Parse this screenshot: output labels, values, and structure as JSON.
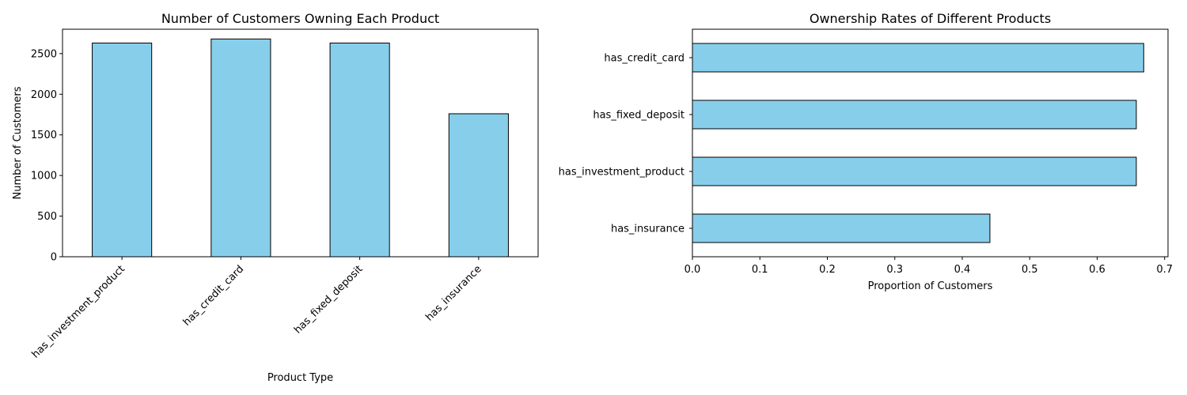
{
  "chart_data": [
    {
      "type": "bar",
      "orientation": "vertical",
      "title": "Number of Customers Owning Each Product",
      "xlabel": "Product Type",
      "ylabel": "Number of Customers",
      "categories": [
        "has_investment_product",
        "has_credit_card",
        "has_fixed_deposit",
        "has_insurance"
      ],
      "values": [
        2630,
        2680,
        2630,
        1760
      ],
      "ylim": [
        0,
        2800
      ],
      "yticks": [
        0,
        500,
        1000,
        1500,
        2000,
        2500
      ],
      "x_tick_rotation_deg": 45,
      "grid": false,
      "bar_color": "#87ceeb",
      "edge_color": "#000000"
    },
    {
      "type": "bar",
      "orientation": "horizontal",
      "title": "Ownership Rates of Different Products",
      "xlabel": "Proportion of Customers",
      "ylabel": "",
      "categories": [
        "has_credit_card",
        "has_fixed_deposit",
        "has_investment_product",
        "has_insurance"
      ],
      "values": [
        0.669,
        0.658,
        0.658,
        0.441
      ],
      "xlim": [
        0,
        0.705
      ],
      "xticks": [
        0.0,
        0.1,
        0.2,
        0.3,
        0.4,
        0.5,
        0.6,
        0.7
      ],
      "xtick_labels": [
        "0.0",
        "0.1",
        "0.2",
        "0.3",
        "0.4",
        "0.5",
        "0.6",
        "0.7"
      ],
      "grid": false,
      "bar_color": "#87ceeb",
      "edge_color": "#000000"
    }
  ]
}
